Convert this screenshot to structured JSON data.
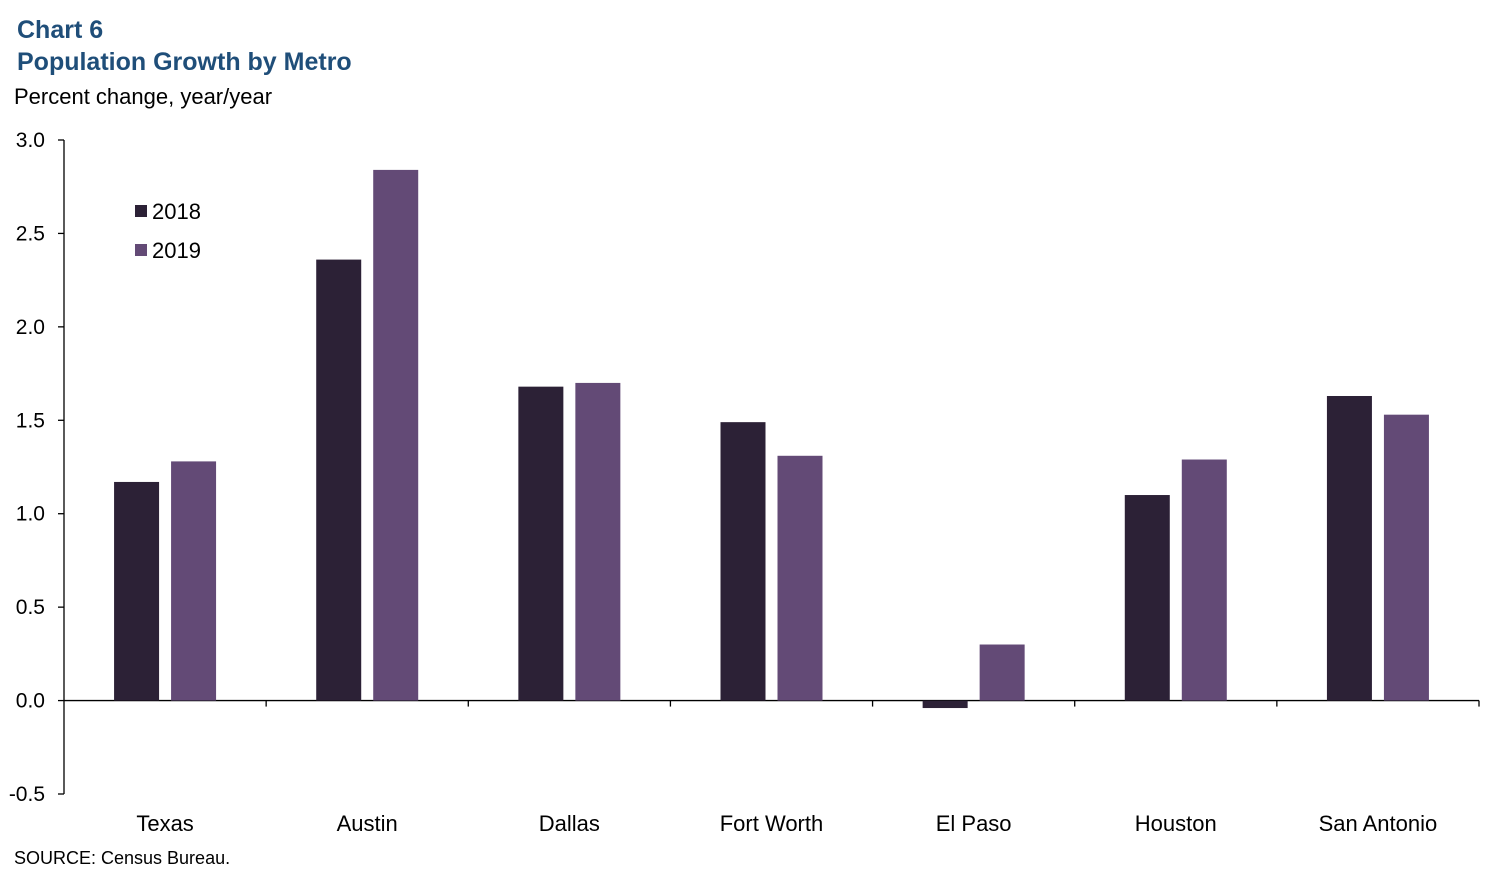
{
  "header": {
    "label": "Chart 6",
    "title": "Population Growth by Metro",
    "subtitle": "Percent change, year/year"
  },
  "footer": {
    "source": "SOURCE:  Census  Bureau."
  },
  "chart_data": {
    "type": "bar",
    "title": "Population Growth by Metro",
    "ylabel": "Percent change, year/year",
    "xlabel": "",
    "ylim": [
      -0.5,
      3.0
    ],
    "yticks": [
      "3.0",
      "2.5",
      "2.0",
      "1.5",
      "1.0",
      "0.5",
      "0.0",
      "-0.5"
    ],
    "ytick_values": [
      3.0,
      2.5,
      2.0,
      1.5,
      1.0,
      0.5,
      0.0,
      -0.5
    ],
    "categories": [
      "Texas",
      "Austin",
      "Dallas",
      "Fort Worth",
      "El Paso",
      "Houston",
      "San Antonio"
    ],
    "series": [
      {
        "name": "2018",
        "color": "#2c2136",
        "values": [
          1.17,
          2.36,
          1.68,
          1.49,
          -0.04,
          1.1,
          1.63
        ]
      },
      {
        "name": "2019",
        "color": "#634a76",
        "values": [
          1.28,
          2.84,
          1.7,
          1.31,
          0.3,
          1.29,
          1.53
        ]
      }
    ],
    "legend_position": "top-left",
    "grid": false
  }
}
